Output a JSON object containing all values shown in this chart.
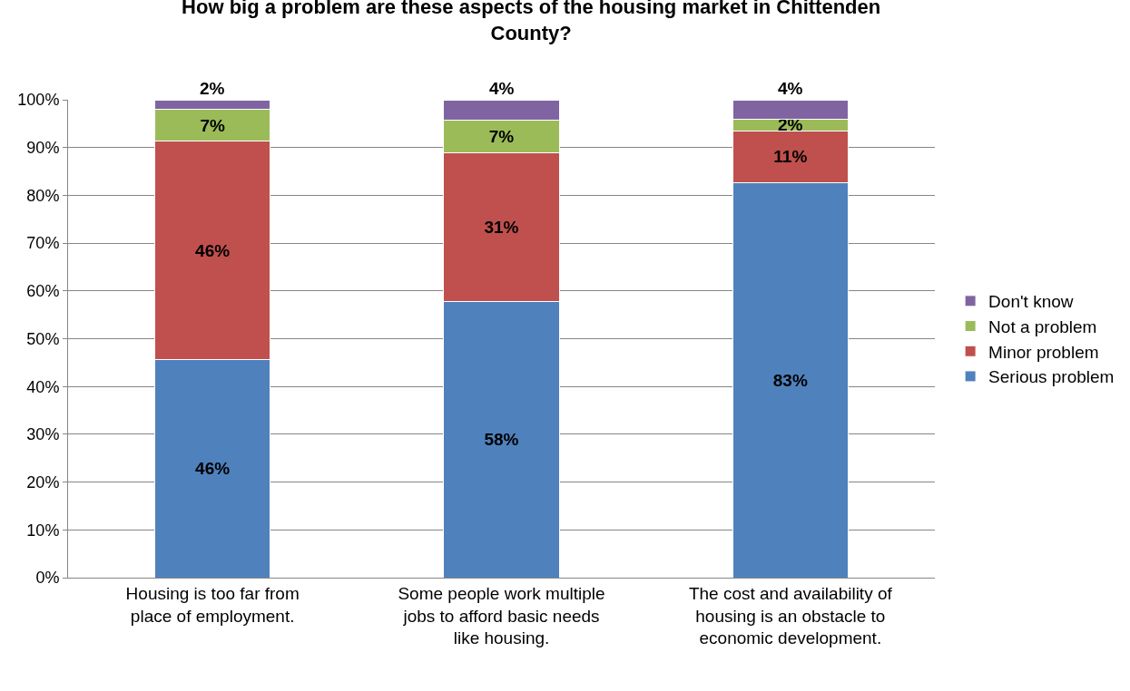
{
  "chart_data": {
    "type": "bar",
    "title": "How big a problem are these aspects of the housing market in Chittenden County?",
    "categories": [
      "Housing is too far from place of employment.",
      "Some people work multiple jobs to afford basic needs like housing.",
      "The cost and availability of housing is an obstacle to economic development."
    ],
    "stacked": true,
    "series": [
      {
        "name": "Serious problem",
        "color": "#4f81bd",
        "values": [
          45.7,
          57.8,
          82.6
        ],
        "value_labels": [
          "46%",
          "58%",
          "83%"
        ]
      },
      {
        "name": "Minor problem",
        "color": "#c0504d",
        "values": [
          45.6,
          31.1,
          10.9
        ],
        "value_labels": [
          "46%",
          "31%",
          "11%"
        ]
      },
      {
        "name": "Not a problem",
        "color": "#9bbb59",
        "values": [
          6.7,
          6.9,
          2.5
        ],
        "value_labels": [
          "7%",
          "7%",
          "2%"
        ]
      },
      {
        "name": "Don't know",
        "color": "#8064a2",
        "values": [
          2.0,
          4.2,
          4.0
        ],
        "value_labels": [
          "2%",
          "4%",
          "4%"
        ]
      }
    ],
    "ylim": [
      0,
      100
    ],
    "yticks": [
      {
        "value": 0,
        "label": "0%"
      },
      {
        "value": 10,
        "label": "10%"
      },
      {
        "value": 20,
        "label": "20%"
      },
      {
        "value": 30,
        "label": "30%"
      },
      {
        "value": 40,
        "label": "40%"
      },
      {
        "value": 50,
        "label": "50%"
      },
      {
        "value": 60,
        "label": "60%"
      },
      {
        "value": 70,
        "label": "70%"
      },
      {
        "value": 80,
        "label": "80%"
      },
      {
        "value": 90,
        "label": "90%"
      },
      {
        "value": 100,
        "label": "100%"
      }
    ],
    "grid": "y",
    "legend": "right"
  }
}
